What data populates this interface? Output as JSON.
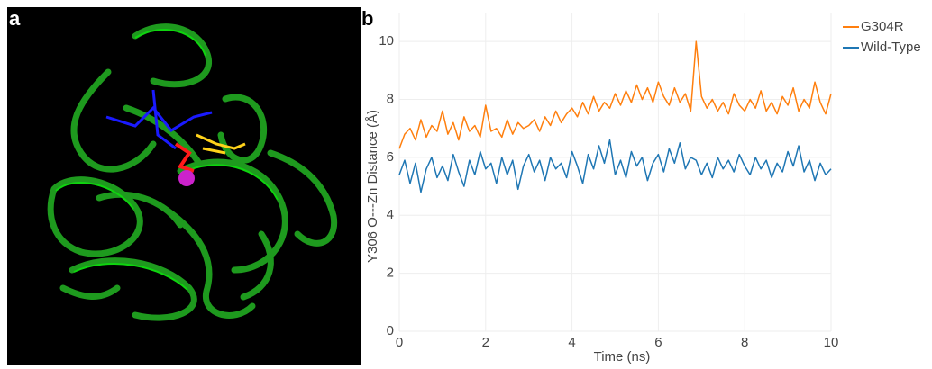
{
  "panel_labels": [
    "a",
    "b"
  ],
  "chart_data": {
    "type": "line",
    "x_label": "Time (ns)",
    "y_label": "Y306 O---Zn Distance (Å)",
    "xlim": [
      0,
      10
    ],
    "ylim": [
      0,
      11
    ],
    "xticks": [
      0,
      2,
      4,
      6,
      8,
      10
    ],
    "yticks": [
      0,
      2,
      4,
      6,
      8,
      10
    ],
    "grid": true,
    "legend": "top-right",
    "x": [
      0,
      0.125,
      0.25,
      0.375,
      0.5,
      0.625,
      0.75,
      0.875,
      1,
      1.125,
      1.25,
      1.375,
      1.5,
      1.625,
      1.75,
      1.875,
      2,
      2.125,
      2.25,
      2.375,
      2.5,
      2.625,
      2.75,
      2.875,
      3,
      3.125,
      3.25,
      3.375,
      3.5,
      3.625,
      3.75,
      3.875,
      4,
      4.125,
      4.25,
      4.375,
      4.5,
      4.625,
      4.75,
      4.875,
      5,
      5.125,
      5.25,
      5.375,
      5.5,
      5.625,
      5.75,
      5.875,
      6,
      6.125,
      6.25,
      6.375,
      6.5,
      6.625,
      6.75,
      6.875,
      7,
      7.125,
      7.25,
      7.375,
      7.5,
      7.625,
      7.75,
      7.875,
      8,
      8.125,
      8.25,
      8.375,
      8.5,
      8.625,
      8.75,
      8.875,
      9,
      9.125,
      9.25,
      9.375,
      9.5,
      9.625,
      9.75,
      9.875,
      10
    ],
    "series": [
      {
        "name": "G304R",
        "color": "#ff7f0e",
        "values": [
          6.3,
          6.8,
          7.0,
          6.6,
          7.3,
          6.7,
          7.1,
          6.9,
          7.6,
          6.8,
          7.2,
          6.6,
          7.4,
          6.9,
          7.1,
          6.7,
          7.8,
          6.9,
          7.0,
          6.7,
          7.3,
          6.8,
          7.2,
          7.0,
          7.1,
          7.3,
          6.9,
          7.4,
          7.1,
          7.6,
          7.2,
          7.5,
          7.7,
          7.4,
          7.9,
          7.5,
          8.1,
          7.6,
          7.9,
          7.7,
          8.2,
          7.8,
          8.3,
          7.9,
          8.5,
          8.0,
          8.4,
          7.9,
          8.6,
          8.1,
          7.8,
          8.4,
          7.9,
          8.2,
          7.6,
          10.0,
          8.1,
          7.7,
          8.0,
          7.6,
          7.9,
          7.5,
          8.2,
          7.8,
          7.6,
          8.0,
          7.7,
          8.3,
          7.6,
          7.9,
          7.5,
          8.1,
          7.8,
          8.4,
          7.6,
          8.0,
          7.7,
          8.6,
          7.9,
          7.5,
          8.2
        ]
      },
      {
        "name": "Wild-Type",
        "color": "#1f77b4",
        "values": [
          5.4,
          5.9,
          5.1,
          5.8,
          4.8,
          5.6,
          6.0,
          5.3,
          5.7,
          5.2,
          6.1,
          5.5,
          5.0,
          5.9,
          5.4,
          6.2,
          5.6,
          5.8,
          5.1,
          6.0,
          5.4,
          5.9,
          4.9,
          5.7,
          6.1,
          5.5,
          5.9,
          5.2,
          6.0,
          5.6,
          5.8,
          5.3,
          6.2,
          5.7,
          5.1,
          6.1,
          5.6,
          6.4,
          5.8,
          6.6,
          5.4,
          5.9,
          5.3,
          6.2,
          5.7,
          6.0,
          5.2,
          5.8,
          6.1,
          5.5,
          6.3,
          5.8,
          6.5,
          5.6,
          6.0,
          5.9,
          5.4,
          5.8,
          5.3,
          6.0,
          5.6,
          5.9,
          5.5,
          6.1,
          5.7,
          5.4,
          6.0,
          5.6,
          5.9,
          5.3,
          5.8,
          5.5,
          6.2,
          5.7,
          6.4,
          5.5,
          5.9,
          5.2,
          5.8,
          5.4,
          5.6
        ]
      }
    ]
  }
}
